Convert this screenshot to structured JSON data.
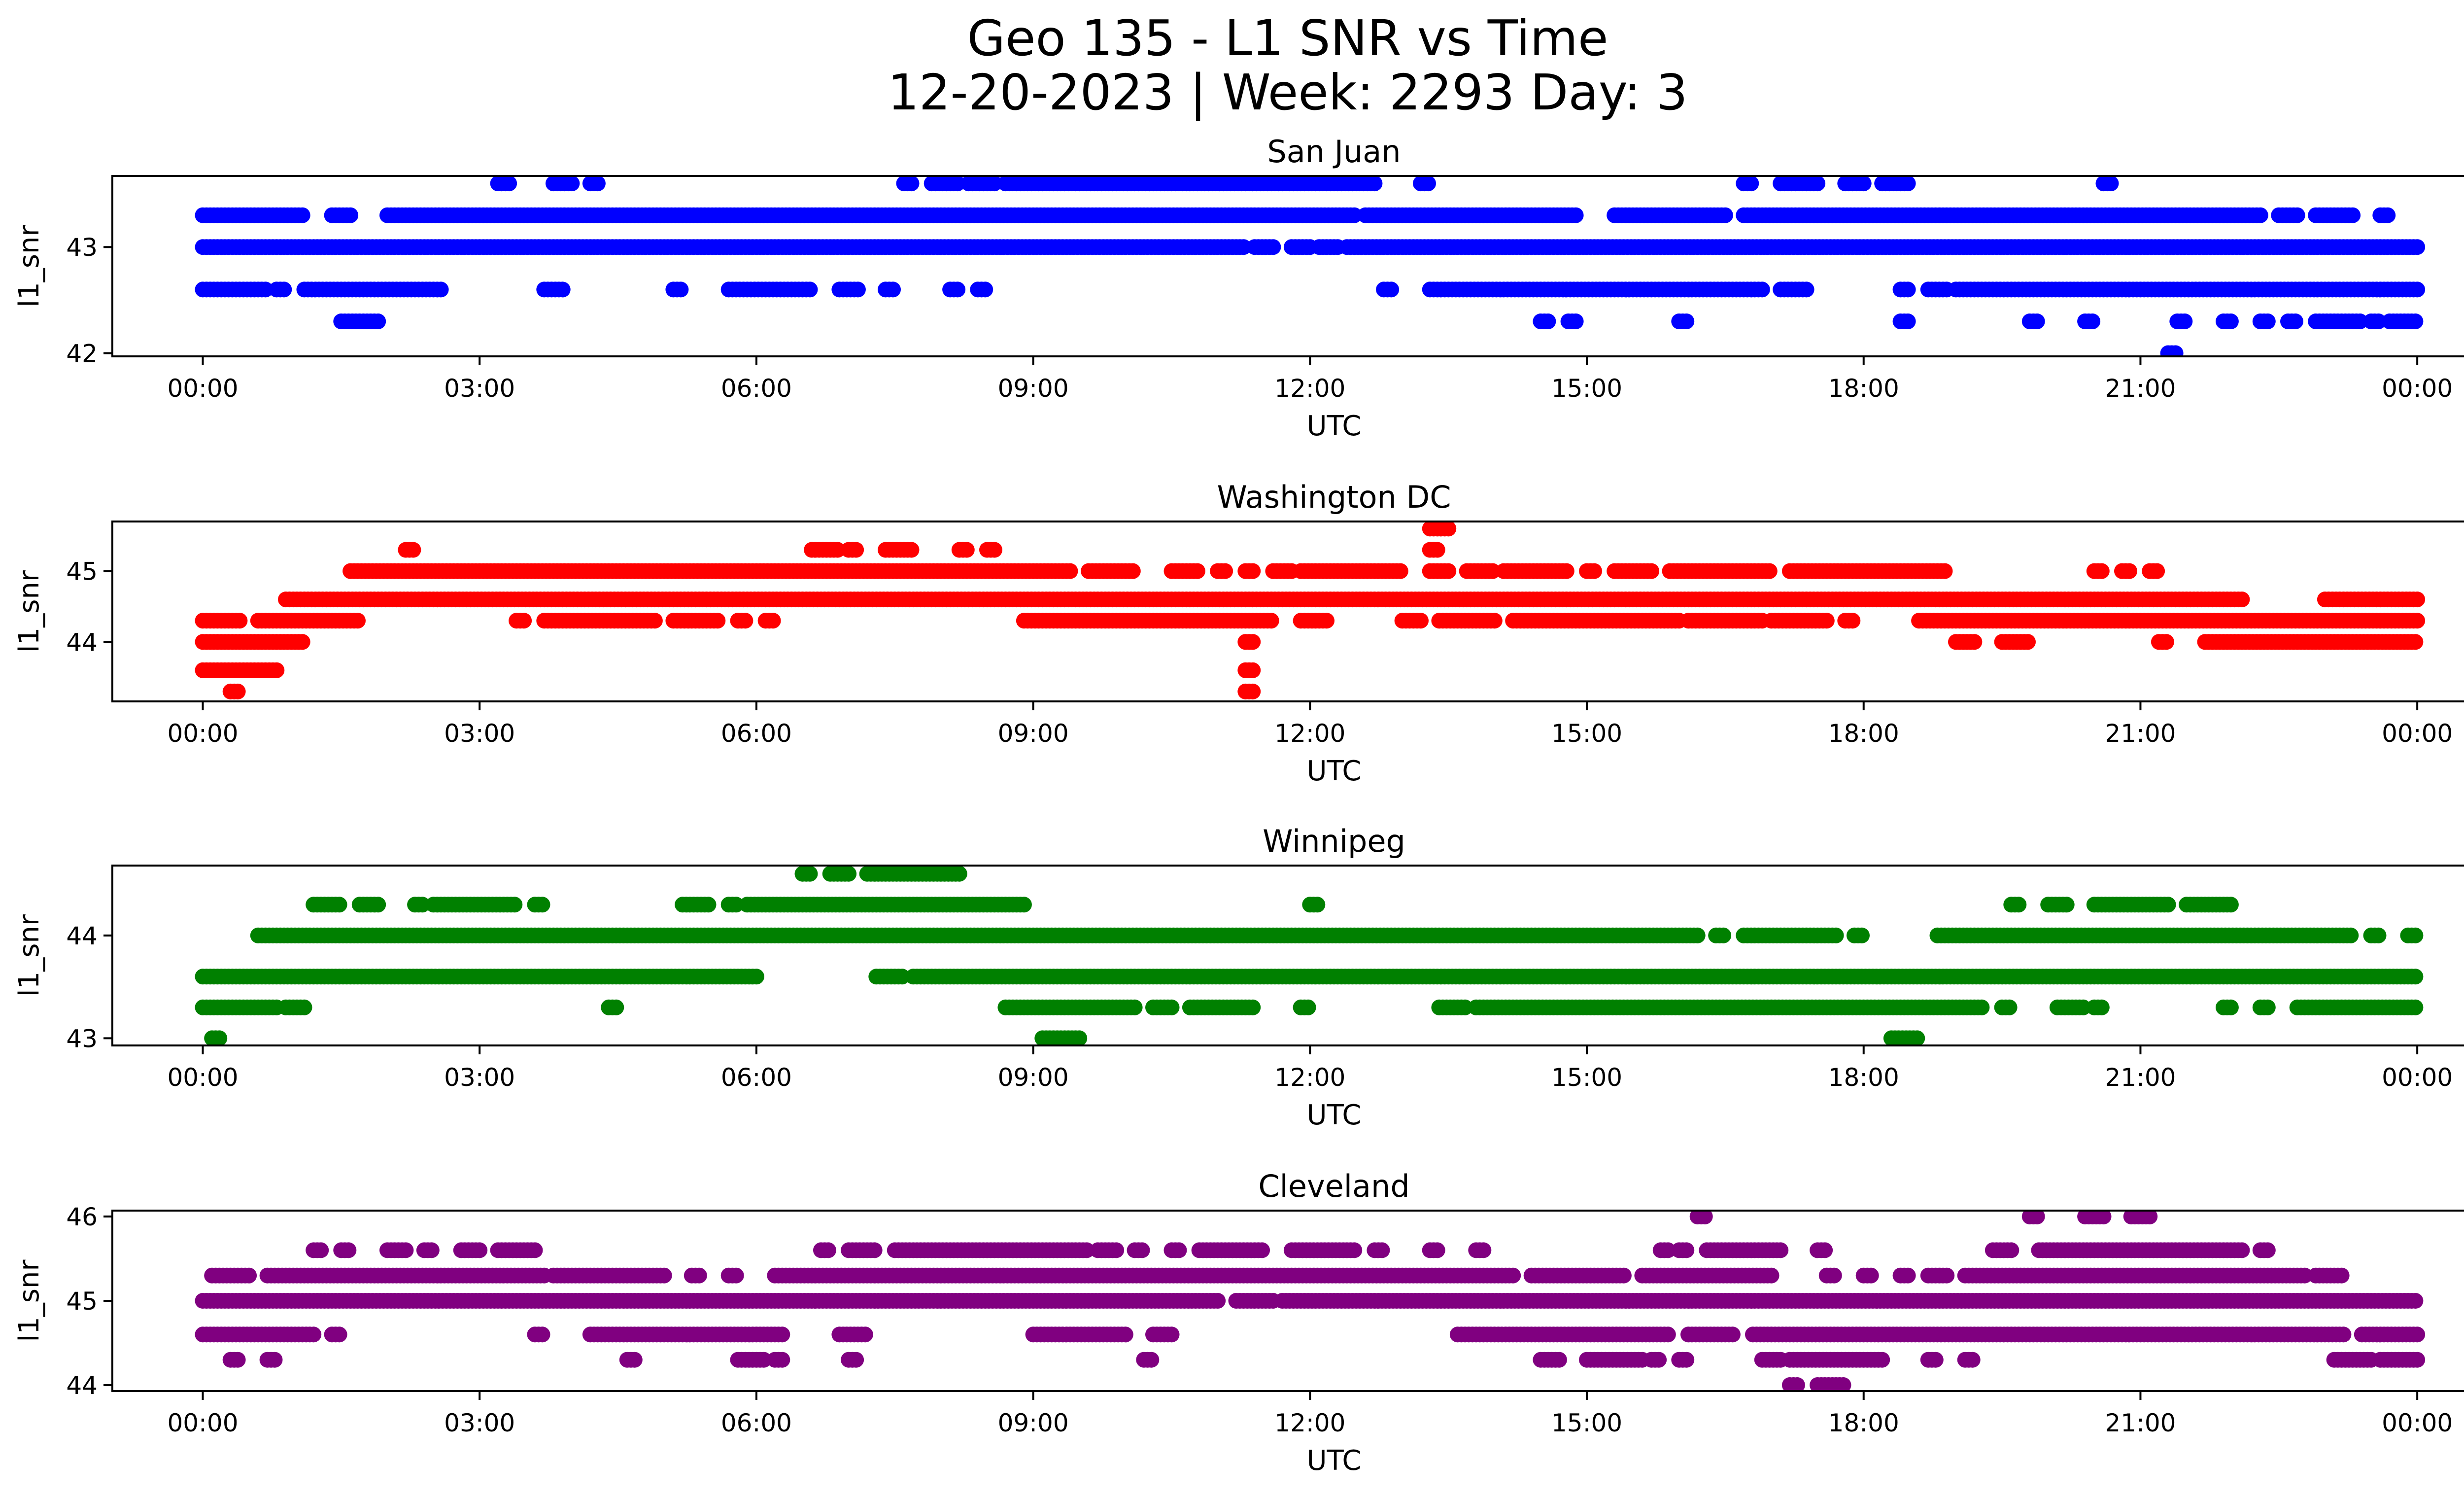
{
  "figure": {
    "title_line1": "Geo 135 - L1 SNR vs Time",
    "title_line2": "12-20-2023 | Week: 2293 Day: 3"
  },
  "chart_data": [
    {
      "type": "scatter",
      "title": "San Juan",
      "xlabel": "UTC",
      "ylabel": "l1_snr",
      "color": "#0000ff",
      "xlim": [
        -0.98,
        25.5
      ],
      "ylim": [
        41.97,
        43.67
      ],
      "xticks": [
        "00:00",
        "03:00",
        "06:00",
        "09:00",
        "12:00",
        "15:00",
        "18:00",
        "21:00",
        "00:00"
      ],
      "yticks": [
        42,
        43
      ],
      "levels": [
        {
          "y": 43.6,
          "ranges": [
            [
              3.2,
              3.35
            ],
            [
              3.8,
              4.0
            ],
            [
              4.2,
              4.3
            ],
            [
              7.6,
              7.7
            ],
            [
              7.9,
              8.2
            ],
            [
              8.3,
              8.6
            ],
            [
              8.7,
              12.7
            ],
            [
              13.2,
              13.3
            ],
            [
              16.7,
              16.8
            ],
            [
              17.1,
              17.5
            ],
            [
              17.8,
              18.0
            ],
            [
              18.2,
              18.5
            ],
            [
              20.6,
              20.7
            ]
          ]
        },
        {
          "y": 43.3,
          "ranges": [
            [
              0.0,
              1.1
            ],
            [
              1.4,
              1.6
            ],
            [
              2.0,
              12.5
            ],
            [
              12.6,
              14.9
            ],
            [
              15.3,
              16.5
            ],
            [
              16.7,
              22.3
            ],
            [
              22.5,
              22.7
            ],
            [
              22.9,
              23.3
            ],
            [
              23.6,
              23.7
            ]
          ]
        },
        {
          "y": 43.0,
          "ranges": [
            [
              0.0,
              11.3
            ],
            [
              11.4,
              11.6
            ],
            [
              11.8,
              12.0
            ],
            [
              12.1,
              12.3
            ],
            [
              12.4,
              24.0
            ]
          ]
        },
        {
          "y": 42.6,
          "ranges": [
            [
              0.0,
              0.7
            ],
            [
              0.8,
              0.9
            ],
            [
              1.1,
              2.6
            ],
            [
              3.7,
              3.9
            ],
            [
              5.1,
              5.2
            ],
            [
              5.7,
              6.6
            ],
            [
              6.9,
              7.1
            ],
            [
              7.4,
              7.5
            ],
            [
              8.1,
              8.2
            ],
            [
              8.4,
              8.5
            ],
            [
              12.8,
              12.9
            ],
            [
              13.3,
              16.9
            ],
            [
              17.1,
              17.4
            ],
            [
              18.4,
              18.5
            ],
            [
              18.7,
              18.9
            ],
            [
              19.0,
              24.0
            ]
          ]
        },
        {
          "y": 42.3,
          "ranges": [
            [
              1.5,
              1.9
            ],
            [
              14.5,
              14.6
            ],
            [
              14.8,
              14.9
            ],
            [
              16.0,
              16.1
            ],
            [
              18.4,
              18.5
            ],
            [
              19.8,
              19.9
            ],
            [
              20.4,
              20.5
            ],
            [
              21.4,
              21.5
            ],
            [
              21.9,
              22.0
            ],
            [
              22.3,
              22.4
            ],
            [
              22.6,
              22.7
            ],
            [
              22.9,
              23.4
            ],
            [
              23.5,
              23.6
            ],
            [
              23.7,
              24.0
            ]
          ]
        },
        {
          "y": 42.0,
          "ranges": [
            [
              21.3,
              21.4
            ]
          ]
        }
      ]
    },
    {
      "type": "scatter",
      "title": "Washington DC",
      "xlabel": "UTC",
      "ylabel": "l1_snr",
      "color": "#ff0000",
      "xlim": [
        -0.98,
        25.5
      ],
      "ylim": [
        43.16,
        45.7
      ],
      "xticks": [
        "00:00",
        "03:00",
        "06:00",
        "09:00",
        "12:00",
        "15:00",
        "18:00",
        "21:00",
        "00:00"
      ],
      "yticks": [
        44,
        45
      ],
      "levels": [
        {
          "y": 45.6,
          "ranges": [
            [
              13.3,
              13.5
            ]
          ]
        },
        {
          "y": 45.3,
          "ranges": [
            [
              2.2,
              2.3
            ],
            [
              6.6,
              6.9
            ],
            [
              7.0,
              7.1
            ],
            [
              7.4,
              7.7
            ],
            [
              8.2,
              8.3
            ],
            [
              8.5,
              8.6
            ],
            [
              13.3,
              13.4
            ]
          ]
        },
        {
          "y": 45.0,
          "ranges": [
            [
              1.6,
              9.4
            ],
            [
              9.6,
              10.1
            ],
            [
              10.5,
              10.8
            ],
            [
              11.0,
              11.1
            ],
            [
              11.3,
              11.4
            ],
            [
              11.6,
              11.8
            ],
            [
              11.9,
              13.0
            ],
            [
              13.3,
              13.5
            ],
            [
              13.7,
              14.0
            ],
            [
              14.1,
              14.8
            ],
            [
              15.0,
              15.1
            ],
            [
              15.3,
              15.7
            ],
            [
              15.9,
              17.0
            ],
            [
              17.2,
              18.9
            ],
            [
              20.5,
              20.6
            ],
            [
              20.8,
              20.9
            ],
            [
              21.1,
              21.2
            ]
          ]
        },
        {
          "y": 44.6,
          "ranges": [
            [
              0.9,
              22.1
            ],
            [
              23.0,
              24.0
            ]
          ]
        },
        {
          "y": 44.3,
          "ranges": [
            [
              0.0,
              0.4
            ],
            [
              0.6,
              1.7
            ],
            [
              3.4,
              3.5
            ],
            [
              3.7,
              4.9
            ],
            [
              5.1,
              5.6
            ],
            [
              5.8,
              5.9
            ],
            [
              6.1,
              6.2
            ],
            [
              8.9,
              11.6
            ],
            [
              11.9,
              12.2
            ],
            [
              13.0,
              13.2
            ],
            [
              13.4,
              14.0
            ],
            [
              14.2,
              16.0
            ],
            [
              16.1,
              16.9
            ],
            [
              17.0,
              17.6
            ],
            [
              17.8,
              17.9
            ],
            [
              18.6,
              24.0
            ]
          ]
        },
        {
          "y": 44.0,
          "ranges": [
            [
              0.0,
              1.1
            ],
            [
              11.3,
              11.4
            ],
            [
              19.0,
              19.2
            ],
            [
              19.5,
              19.8
            ],
            [
              21.2,
              21.3
            ],
            [
              21.7,
              24.0
            ]
          ]
        },
        {
          "y": 43.6,
          "ranges": [
            [
              0.0,
              0.8
            ],
            [
              11.3,
              11.4
            ]
          ]
        },
        {
          "y": 43.3,
          "ranges": [
            [
              0.3,
              0.4
            ],
            [
              11.3,
              11.4
            ]
          ]
        }
      ]
    },
    {
      "type": "scatter",
      "title": "Winnipeg",
      "xlabel": "UTC",
      "ylabel": "l1_snr",
      "color": "#008000",
      "xlim": [
        -0.98,
        25.5
      ],
      "ylim": [
        42.93,
        44.68
      ],
      "xticks": [
        "00:00",
        "03:00",
        "06:00",
        "09:00",
        "12:00",
        "15:00",
        "18:00",
        "21:00",
        "00:00"
      ],
      "yticks": [
        43,
        44
      ],
      "levels": [
        {
          "y": 44.6,
          "ranges": [
            [
              6.5,
              6.6
            ],
            [
              6.8,
              7.0
            ],
            [
              7.2,
              8.2
            ]
          ]
        },
        {
          "y": 44.3,
          "ranges": [
            [
              1.2,
              1.5
            ],
            [
              1.7,
              1.9
            ],
            [
              2.3,
              2.4
            ],
            [
              2.5,
              3.4
            ],
            [
              3.6,
              3.7
            ],
            [
              5.2,
              5.5
            ],
            [
              5.7,
              5.8
            ],
            [
              5.9,
              8.9
            ],
            [
              12.0,
              12.1
            ],
            [
              19.6,
              19.7
            ],
            [
              20.0,
              20.2
            ],
            [
              20.5,
              21.3
            ],
            [
              21.5,
              22.0
            ]
          ]
        },
        {
          "y": 44.0,
          "ranges": [
            [
              0.6,
              16.2
            ],
            [
              16.4,
              16.5
            ],
            [
              16.7,
              17.7
            ],
            [
              17.9,
              18.0
            ],
            [
              18.8,
              23.3
            ],
            [
              23.5,
              23.6
            ],
            [
              23.9,
              24.0
            ]
          ]
        },
        {
          "y": 43.6,
          "ranges": [
            [
              0.0,
              6.0
            ],
            [
              7.3,
              7.6
            ],
            [
              7.7,
              24.0
            ]
          ]
        },
        {
          "y": 43.3,
          "ranges": [
            [
              0.0,
              0.8
            ],
            [
              0.9,
              1.1
            ],
            [
              4.4,
              4.5
            ],
            [
              8.7,
              10.1
            ],
            [
              10.3,
              10.5
            ],
            [
              10.7,
              11.4
            ],
            [
              11.9,
              12.0
            ],
            [
              13.4,
              13.7
            ],
            [
              13.8,
              19.3
            ],
            [
              19.5,
              19.6
            ],
            [
              20.1,
              20.4
            ],
            [
              20.5,
              20.6
            ],
            [
              21.9,
              22.0
            ],
            [
              22.3,
              22.4
            ],
            [
              22.7,
              24.0
            ]
          ]
        },
        {
          "y": 43.0,
          "ranges": [
            [
              0.1,
              0.2
            ],
            [
              9.1,
              9.5
            ],
            [
              18.3,
              18.6
            ]
          ]
        }
      ]
    },
    {
      "type": "scatter",
      "title": "Cleveland",
      "xlabel": "UTC",
      "ylabel": "l1_snr",
      "color": "#800080",
      "xlim": [
        -0.98,
        25.5
      ],
      "ylim": [
        43.93,
        46.07
      ],
      "xticks": [
        "00:00",
        "03:00",
        "06:00",
        "09:00",
        "12:00",
        "15:00",
        "18:00",
        "21:00",
        "00:00"
      ],
      "yticks": [
        44,
        45,
        46
      ],
      "levels": [
        {
          "y": 46.0,
          "ranges": [
            [
              16.2,
              16.3
            ],
            [
              19.8,
              19.9
            ],
            [
              20.4,
              20.6
            ],
            [
              20.9,
              21.1
            ]
          ]
        },
        {
          "y": 45.6,
          "ranges": [
            [
              1.2,
              1.3
            ],
            [
              1.5,
              1.6
            ],
            [
              2.0,
              2.2
            ],
            [
              2.4,
              2.5
            ],
            [
              2.8,
              3.0
            ],
            [
              3.2,
              3.6
            ],
            [
              6.7,
              6.8
            ],
            [
              7.0,
              7.3
            ],
            [
              7.5,
              9.6
            ],
            [
              9.7,
              9.9
            ],
            [
              10.1,
              10.2
            ],
            [
              10.5,
              10.6
            ],
            [
              10.8,
              11.5
            ],
            [
              11.8,
              12.5
            ],
            [
              12.7,
              12.8
            ],
            [
              13.3,
              13.4
            ],
            [
              13.8,
              13.9
            ],
            [
              15.8,
              15.9
            ],
            [
              16.0,
              16.1
            ],
            [
              16.3,
              17.1
            ],
            [
              17.5,
              17.6
            ],
            [
              19.4,
              19.6
            ],
            [
              19.9,
              22.1
            ],
            [
              22.3,
              22.4
            ]
          ]
        },
        {
          "y": 45.3,
          "ranges": [
            [
              0.1,
              0.5
            ],
            [
              0.7,
              3.7
            ],
            [
              3.8,
              5.0
            ],
            [
              5.3,
              5.4
            ],
            [
              5.7,
              5.8
            ],
            [
              6.2,
              14.2
            ],
            [
              14.4,
              15.4
            ],
            [
              15.6,
              17.0
            ],
            [
              17.6,
              17.7
            ],
            [
              18.0,
              18.1
            ],
            [
              18.4,
              18.5
            ],
            [
              18.7,
              18.9
            ],
            [
              19.1,
              22.8
            ],
            [
              22.9,
              23.2
            ]
          ]
        },
        {
          "y": 45.0,
          "ranges": [
            [
              0.0,
              11.0
            ],
            [
              11.2,
              11.6
            ],
            [
              11.7,
              24.0
            ]
          ]
        },
        {
          "y": 44.6,
          "ranges": [
            [
              0.0,
              1.2
            ],
            [
              1.4,
              1.5
            ],
            [
              3.6,
              3.7
            ],
            [
              4.2,
              6.3
            ],
            [
              6.9,
              7.2
            ],
            [
              9.0,
              10.0
            ],
            [
              10.3,
              10.5
            ],
            [
              13.6,
              15.9
            ],
            [
              16.1,
              16.6
            ],
            [
              16.8,
              23.2
            ],
            [
              23.4,
              24.0
            ]
          ]
        },
        {
          "y": 44.3,
          "ranges": [
            [
              0.3,
              0.4
            ],
            [
              0.7,
              0.8
            ],
            [
              4.6,
              4.7
            ],
            [
              5.8,
              6.1
            ],
            [
              6.2,
              6.3
            ],
            [
              7.0,
              7.1
            ],
            [
              10.2,
              10.3
            ],
            [
              14.5,
              14.7
            ],
            [
              15.0,
              15.6
            ],
            [
              15.7,
              15.8
            ],
            [
              16.0,
              16.1
            ],
            [
              16.9,
              17.1
            ],
            [
              17.2,
              18.2
            ],
            [
              18.7,
              18.8
            ],
            [
              19.1,
              19.2
            ],
            [
              23.1,
              23.5
            ],
            [
              23.6,
              24.0
            ]
          ]
        },
        {
          "y": 44.0,
          "ranges": [
            [
              17.2,
              17.3
            ],
            [
              17.5,
              17.8
            ]
          ]
        }
      ]
    }
  ]
}
